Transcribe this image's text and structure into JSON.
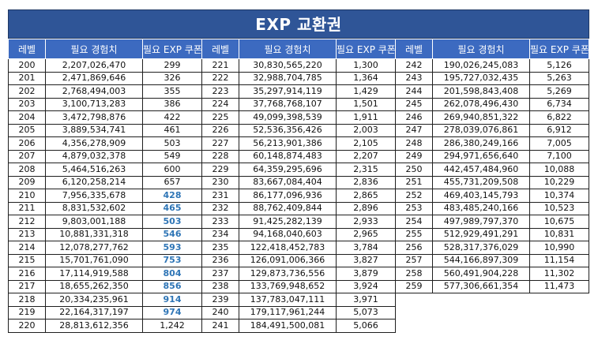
{
  "title": "EXP 교환권",
  "headers": {
    "level": "레벨",
    "exp": "필요 경험치",
    "coupon": "필요 EXP 쿠폰"
  },
  "colors": {
    "title_bg": "#2f5597",
    "header_bg": "#3c6ac0",
    "highlight_text": "#2e75b6"
  },
  "table": {
    "columns": [
      {
        "rows": [
          {
            "level": "200",
            "exp": "2,207,026,470",
            "coupon": "299",
            "highlight": false
          },
          {
            "level": "201",
            "exp": "2,471,869,646",
            "coupon": "326",
            "highlight": false
          },
          {
            "level": "202",
            "exp": "2,768,494,003",
            "coupon": "355",
            "highlight": false
          },
          {
            "level": "203",
            "exp": "3,100,713,283",
            "coupon": "386",
            "highlight": false
          },
          {
            "level": "204",
            "exp": "3,472,798,876",
            "coupon": "422",
            "highlight": false
          },
          {
            "level": "205",
            "exp": "3,889,534,741",
            "coupon": "461",
            "highlight": false
          },
          {
            "level": "206",
            "exp": "4,356,278,909",
            "coupon": "503",
            "highlight": false
          },
          {
            "level": "207",
            "exp": "4,879,032,378",
            "coupon": "549",
            "highlight": false
          },
          {
            "level": "208",
            "exp": "5,464,516,263",
            "coupon": "600",
            "highlight": false
          },
          {
            "level": "209",
            "exp": "6,120,258,214",
            "coupon": "657",
            "highlight": false
          },
          {
            "level": "210",
            "exp": "7,956,335,678",
            "coupon": "428",
            "highlight": true
          },
          {
            "level": "211",
            "exp": "8,831,532,602",
            "coupon": "465",
            "highlight": true
          },
          {
            "level": "212",
            "exp": "9,803,001,188",
            "coupon": "503",
            "highlight": true
          },
          {
            "level": "213",
            "exp": "10,881,331,318",
            "coupon": "546",
            "highlight": true
          },
          {
            "level": "214",
            "exp": "12,078,277,762",
            "coupon": "593",
            "highlight": true
          },
          {
            "level": "215",
            "exp": "15,701,761,090",
            "coupon": "753",
            "highlight": true
          },
          {
            "level": "216",
            "exp": "17,114,919,588",
            "coupon": "804",
            "highlight": true
          },
          {
            "level": "217",
            "exp": "18,655,262,350",
            "coupon": "856",
            "highlight": true
          },
          {
            "level": "218",
            "exp": "20,334,235,961",
            "coupon": "914",
            "highlight": true
          },
          {
            "level": "219",
            "exp": "22,164,317,197",
            "coupon": "974",
            "highlight": true
          },
          {
            "level": "220",
            "exp": "28,813,612,356",
            "coupon": "1,242",
            "highlight": false
          }
        ]
      },
      {
        "rows": [
          {
            "level": "221",
            "exp": "30,830,565,220",
            "coupon": "1,300",
            "highlight": false
          },
          {
            "level": "222",
            "exp": "32,988,704,785",
            "coupon": "1,364",
            "highlight": false
          },
          {
            "level": "223",
            "exp": "35,297,914,119",
            "coupon": "1,429",
            "highlight": false
          },
          {
            "level": "224",
            "exp": "37,768,768,107",
            "coupon": "1,501",
            "highlight": false
          },
          {
            "level": "225",
            "exp": "49,099,398,539",
            "coupon": "1,911",
            "highlight": false
          },
          {
            "level": "226",
            "exp": "52,536,356,426",
            "coupon": "2,003",
            "highlight": false
          },
          {
            "level": "227",
            "exp": "56,213,901,386",
            "coupon": "2,105",
            "highlight": false
          },
          {
            "level": "228",
            "exp": "60,148,874,483",
            "coupon": "2,207",
            "highlight": false
          },
          {
            "level": "229",
            "exp": "64,359,295,696",
            "coupon": "2,315",
            "highlight": false
          },
          {
            "level": "230",
            "exp": "83,667,084,404",
            "coupon": "2,836",
            "highlight": false
          },
          {
            "level": "231",
            "exp": "86,177,096,936",
            "coupon": "2,865",
            "highlight": false
          },
          {
            "level": "232",
            "exp": "88,762,409,844",
            "coupon": "2,896",
            "highlight": false
          },
          {
            "level": "233",
            "exp": "91,425,282,139",
            "coupon": "2,933",
            "highlight": false
          },
          {
            "level": "234",
            "exp": "94,168,040,603",
            "coupon": "2,965",
            "highlight": false
          },
          {
            "level": "235",
            "exp": "122,418,452,783",
            "coupon": "3,784",
            "highlight": false
          },
          {
            "level": "236",
            "exp": "126,091,006,366",
            "coupon": "3,827",
            "highlight": false
          },
          {
            "level": "237",
            "exp": "129,873,736,556",
            "coupon": "3,879",
            "highlight": false
          },
          {
            "level": "238",
            "exp": "133,769,948,652",
            "coupon": "3,924",
            "highlight": false
          },
          {
            "level": "239",
            "exp": "137,783,047,111",
            "coupon": "3,971",
            "highlight": false
          },
          {
            "level": "240",
            "exp": "179,117,961,244",
            "coupon": "5,073",
            "highlight": false
          },
          {
            "level": "241",
            "exp": "184,491,500,081",
            "coupon": "5,066",
            "highlight": false
          }
        ]
      },
      {
        "rows": [
          {
            "level": "242",
            "exp": "190,026,245,083",
            "coupon": "5,126",
            "highlight": false
          },
          {
            "level": "243",
            "exp": "195,727,032,435",
            "coupon": "5,263",
            "highlight": false
          },
          {
            "level": "244",
            "exp": "201,598,843,408",
            "coupon": "5,269",
            "highlight": false
          },
          {
            "level": "245",
            "exp": "262,078,496,430",
            "coupon": "6,734",
            "highlight": false
          },
          {
            "level": "246",
            "exp": "269,940,851,322",
            "coupon": "6,822",
            "highlight": false
          },
          {
            "level": "247",
            "exp": "278,039,076,861",
            "coupon": "6,912",
            "highlight": false
          },
          {
            "level": "248",
            "exp": "286,380,249,166",
            "coupon": "7,005",
            "highlight": false
          },
          {
            "level": "249",
            "exp": "294,971,656,640",
            "coupon": "7,100",
            "highlight": false
          },
          {
            "level": "250",
            "exp": "442,457,484,960",
            "coupon": "10,088",
            "highlight": false
          },
          {
            "level": "251",
            "exp": "455,731,209,508",
            "coupon": "10,229",
            "highlight": false
          },
          {
            "level": "252",
            "exp": "469,403,145,793",
            "coupon": "10,374",
            "highlight": false
          },
          {
            "level": "253",
            "exp": "483,485,240,166",
            "coupon": "10,523",
            "highlight": false
          },
          {
            "level": "254",
            "exp": "497,989,797,370",
            "coupon": "10,675",
            "highlight": false
          },
          {
            "level": "255",
            "exp": "512,929,491,291",
            "coupon": "10,831",
            "highlight": false
          },
          {
            "level": "256",
            "exp": "528,317,376,029",
            "coupon": "10,990",
            "highlight": false
          },
          {
            "level": "257",
            "exp": "544,166,897,309",
            "coupon": "11,154",
            "highlight": false
          },
          {
            "level": "258",
            "exp": "560,491,904,228",
            "coupon": "11,302",
            "highlight": false
          },
          {
            "level": "259",
            "exp": "577,306,661,354",
            "coupon": "11,473",
            "highlight": false
          }
        ]
      }
    ]
  }
}
